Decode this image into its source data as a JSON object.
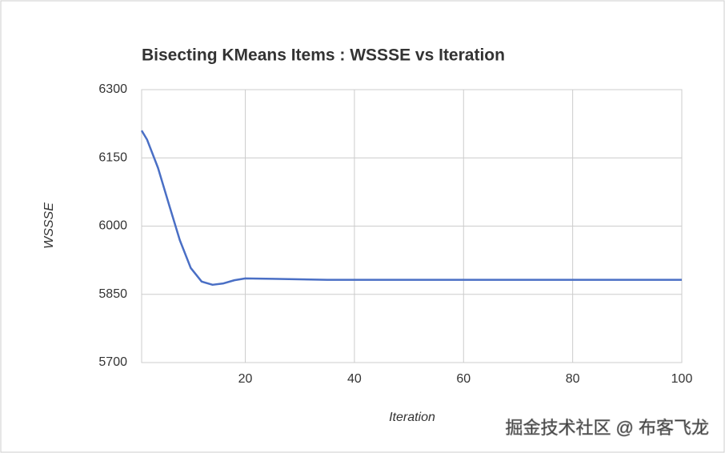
{
  "chart_data": {
    "type": "line",
    "title": "Bisecting KMeans Items : WSSSE vs Iteration",
    "x_label": "Iteration",
    "y_label": "WSSSE",
    "watermark": "掘金技术社区 @ 布客飞龙",
    "x": [
      1,
      2,
      4,
      6,
      8,
      10,
      12,
      14,
      16,
      18,
      20,
      25,
      30,
      35,
      40,
      50,
      60,
      70,
      80,
      90,
      100
    ],
    "series": [
      {
        "name": "WSSSE",
        "color": "#4a6fc5",
        "values": [
          6210,
          6190,
          6128,
          6048,
          5969,
          5908,
          5878,
          5871,
          5874,
          5881,
          5885,
          5884,
          5883,
          5882,
          5882,
          5882,
          5882,
          5882,
          5882,
          5882,
          5882
        ]
      }
    ],
    "xlim": [
      1,
      100
    ],
    "xticks": [
      20,
      40,
      60,
      80,
      100
    ],
    "ylim": [
      5700,
      6300
    ],
    "yticks": [
      5700,
      5850,
      6000,
      6150,
      6300
    ],
    "grid": true
  }
}
